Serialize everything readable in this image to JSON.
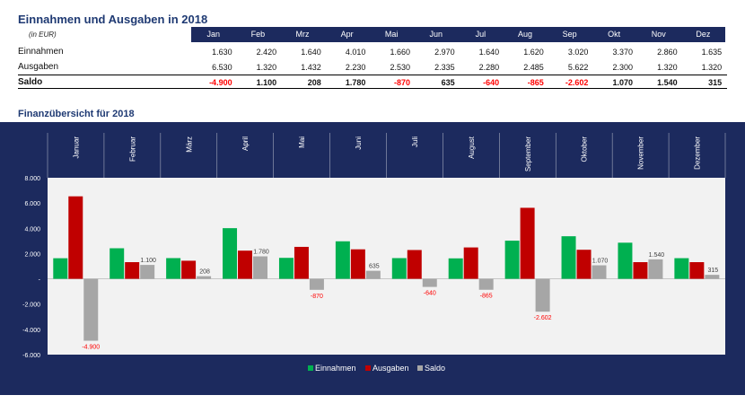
{
  "table": {
    "title": "Einnahmen und Ausgaben in 2018",
    "unit": "(in EUR)",
    "months": [
      "Jan",
      "Feb",
      "Mrz",
      "Apr",
      "Mai",
      "Jun",
      "Jul",
      "Aug",
      "Sep",
      "Okt",
      "Nov",
      "Dez"
    ],
    "rows": [
      {
        "label": "Einnahmen",
        "values": [
          "1.630",
          "2.420",
          "1.640",
          "4.010",
          "1.660",
          "2.970",
          "1.640",
          "1.620",
          "3.020",
          "3.370",
          "2.860",
          "1.635"
        ]
      },
      {
        "label": "Ausgaben",
        "values": [
          "6.530",
          "1.320",
          "1.432",
          "2.230",
          "2.530",
          "2.335",
          "2.280",
          "2.485",
          "5.622",
          "2.300",
          "1.320",
          "1.320"
        ]
      }
    ],
    "saldo": {
      "label": "Saldo",
      "values": [
        "-4.900",
        "1.100",
        "208",
        "1.780",
        "-870",
        "635",
        "-640",
        "-865",
        "-2.602",
        "1.070",
        "1.540",
        "315"
      ]
    }
  },
  "chart_title": "Finanzübersicht für 2018",
  "colors": {
    "einnahmen": "#00b050",
    "ausgaben": "#c00000",
    "saldo": "#a6a6a6",
    "negative_label": "#ff0000",
    "header_bg": "#1c2a5e"
  },
  "chart_data": {
    "type": "bar",
    "title": "Finanzübersicht für 2018",
    "categories": [
      "Januar",
      "Februar",
      "März",
      "April",
      "Mai",
      "Juni",
      "Juli",
      "August",
      "September",
      "Oktober",
      "November",
      "Dezember"
    ],
    "series": [
      {
        "name": "Einnahmen",
        "values": [
          1630,
          2420,
          1640,
          4010,
          1660,
          2970,
          1640,
          1620,
          3020,
          3370,
          2860,
          1635
        ]
      },
      {
        "name": "Ausgaben",
        "values": [
          6530,
          1320,
          1432,
          2230,
          2530,
          2335,
          2280,
          2485,
          5622,
          2300,
          1320,
          1320
        ]
      },
      {
        "name": "Saldo",
        "values": [
          -4900,
          1100,
          208,
          1780,
          -870,
          635,
          -640,
          -865,
          -2602,
          1070,
          1540,
          315
        ]
      }
    ],
    "saldo_labels": [
      "-4.900",
      "1.100",
      "208",
      "1.780",
      "-870",
      "635",
      "-640",
      "-865",
      "-2.602",
      "1.070",
      "1.540",
      "315"
    ],
    "ylim": [
      -6000,
      8000
    ],
    "yticks": [
      -6000,
      -4000,
      -2000,
      0,
      2000,
      4000,
      6000,
      8000
    ],
    "ytick_labels": [
      "-6.000",
      "-4.000",
      "-2.000",
      "-",
      "2.000",
      "4.000",
      "6.000",
      "8.000"
    ],
    "legend": [
      "Einnahmen",
      "Ausgaben",
      "Saldo"
    ],
    "legend_position": "bottom"
  }
}
